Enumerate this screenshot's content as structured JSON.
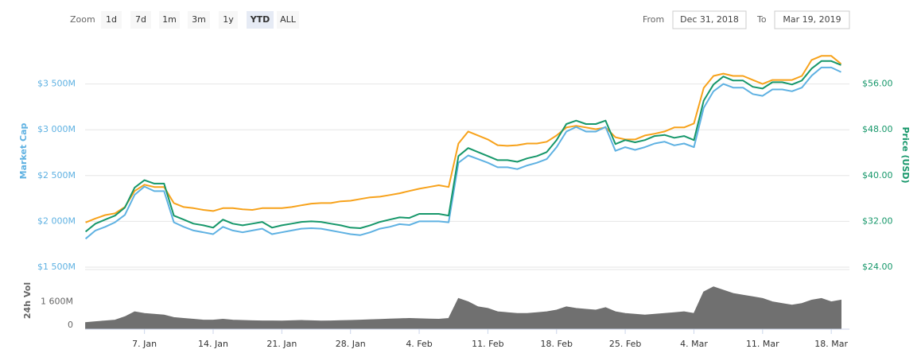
{
  "toolbar": {
    "zoom_label": "Zoom",
    "buttons": [
      "1d",
      "7d",
      "1m",
      "3m",
      "1y",
      "YTD",
      "ALL"
    ],
    "active": 5,
    "from_label": "From",
    "from": "Dec 31, 2018",
    "to_label": "To",
    "to": "Mar 19, 2019"
  },
  "chart_data": [
    {
      "type": "line",
      "y_label": "Market Cap",
      "y2_label": "Price (USD)",
      "grid": true,
      "x": [
        "1. Jan",
        "2. Jan",
        "3. Jan",
        "4. Jan",
        "5. Jan",
        "6. Jan",
        "7. Jan",
        "8. Jan",
        "9. Jan",
        "10. Jan",
        "11. Jan",
        "12. Jan",
        "13. Jan",
        "14. Jan",
        "15. Jan",
        "16. Jan",
        "17. Jan",
        "18. Jan",
        "19. Jan",
        "20. Jan",
        "21. Jan",
        "22. Jan",
        "23. Jan",
        "24. Jan",
        "25. Jan",
        "26. Jan",
        "27. Jan",
        "28. Jan",
        "29. Jan",
        "30. Jan",
        "31. Jan",
        "1. Feb",
        "2. Feb",
        "3. Feb",
        "4. Feb",
        "5. Feb",
        "6. Feb",
        "7. Feb",
        "8. Feb",
        "9. Feb",
        "10. Feb",
        "11. Feb",
        "12. Feb",
        "13. Feb",
        "14. Feb",
        "15. Feb",
        "16. Feb",
        "17. Feb",
        "18. Feb",
        "19. Feb",
        "20. Feb",
        "21. Feb",
        "22. Feb",
        "23. Feb",
        "24. Feb",
        "25. Feb",
        "26. Feb",
        "27. Feb",
        "28. Feb",
        "1. Mar",
        "2. Mar",
        "3. Mar",
        "4. Mar",
        "5. Mar",
        "6. Mar",
        "7. Mar",
        "8. Mar",
        "9. Mar",
        "10. Mar",
        "11. Mar",
        "12. Mar",
        "13. Mar",
        "14. Mar",
        "15. Mar",
        "16. Mar",
        "17. Mar",
        "18. Mar",
        "19. Mar"
      ],
      "ylim": [
        1500,
        4000
      ],
      "yticks": [
        {
          "value": 1500,
          "label": "$1 500M"
        },
        {
          "value": 2000,
          "label": "$2 000M"
        },
        {
          "value": 2500,
          "label": "$2 500M"
        },
        {
          "value": 3000,
          "label": "$3 000M"
        },
        {
          "value": 3500,
          "label": "$3 500M"
        }
      ],
      "y2lim": [
        24,
        64
      ],
      "y2ticks": [
        {
          "value": 24,
          "label": "$24.00"
        },
        {
          "value": 32,
          "label": "$32.00"
        },
        {
          "value": 40,
          "label": "$40.00"
        },
        {
          "value": 48,
          "label": "$48.00"
        },
        {
          "value": 56,
          "label": "$56.00"
        }
      ],
      "series": [
        {
          "color": "#f7a21b",
          "axis": "y2",
          "values": [
            31.8,
            32.5,
            33.1,
            33.4,
            34.5,
            37.3,
            38.4,
            38.0,
            38.0,
            35.2,
            34.5,
            34.3,
            34.0,
            33.8,
            34.3,
            34.3,
            34.1,
            34.0,
            34.3,
            34.3,
            34.3,
            34.5,
            34.8,
            35.1,
            35.2,
            35.2,
            35.5,
            35.6,
            35.9,
            36.2,
            36.3,
            36.6,
            36.9,
            37.3,
            37.7,
            38.0,
            38.3,
            38.0,
            45.6,
            47.7,
            47.0,
            46.3,
            45.3,
            45.2,
            45.3,
            45.6,
            45.6,
            45.9,
            47.0,
            48.4,
            48.7,
            48.4,
            48.1,
            48.4,
            46.7,
            46.3,
            46.3,
            47.0,
            47.3,
            47.7,
            48.4,
            48.4,
            49.1,
            55.3,
            57.4,
            57.8,
            57.4,
            57.4,
            56.7,
            56.0,
            56.7,
            56.7,
            56.7,
            57.4,
            60.2,
            60.9,
            60.9,
            59.5
          ]
        },
        {
          "color": "#5eb1e2",
          "axis": "y",
          "values": [
            1810,
            1900,
            1940,
            1990,
            2070,
            2290,
            2380,
            2330,
            2330,
            1990,
            1940,
            1900,
            1880,
            1860,
            1940,
            1900,
            1880,
            1900,
            1920,
            1860,
            1880,
            1900,
            1920,
            1925,
            1920,
            1900,
            1880,
            1860,
            1850,
            1880,
            1920,
            1940,
            1970,
            1960,
            2000,
            2000,
            2000,
            1990,
            2640,
            2720,
            2680,
            2640,
            2590,
            2590,
            2570,
            2610,
            2640,
            2680,
            2810,
            2980,
            3030,
            2980,
            2980,
            3030,
            2770,
            2810,
            2780,
            2810,
            2850,
            2870,
            2830,
            2850,
            2810,
            3240,
            3420,
            3500,
            3460,
            3460,
            3390,
            3370,
            3440,
            3440,
            3420,
            3460,
            3590,
            3680,
            3680,
            3630
          ]
        },
        {
          "color": "#16976a",
          "axis": "y2",
          "values": [
            30.2,
            31.6,
            32.3,
            33.0,
            34.4,
            37.9,
            39.2,
            38.6,
            38.6,
            33.0,
            32.3,
            31.6,
            31.3,
            30.9,
            32.3,
            31.6,
            31.3,
            31.6,
            31.9,
            30.9,
            31.3,
            31.6,
            31.9,
            32.0,
            31.9,
            31.6,
            31.3,
            30.9,
            30.8,
            31.3,
            31.9,
            32.3,
            32.7,
            32.6,
            33.3,
            33.3,
            33.3,
            33.0,
            43.4,
            44.8,
            44.1,
            43.4,
            42.7,
            42.7,
            42.4,
            43.0,
            43.4,
            44.1,
            46.2,
            49.0,
            49.6,
            49.0,
            49.0,
            49.6,
            45.5,
            46.2,
            45.8,
            46.2,
            46.9,
            47.1,
            46.6,
            46.9,
            46.2,
            53.1,
            55.9,
            57.3,
            56.6,
            56.6,
            55.5,
            55.2,
            56.3,
            56.3,
            55.9,
            56.6,
            58.7,
            60.0,
            60.0,
            59.3
          ]
        }
      ]
    },
    {
      "type": "area",
      "y_label": "24h Vol",
      "color": "#707070",
      "ylim": [
        0,
        3400
      ],
      "yticks": [
        0,
        {
          "value": 1600,
          "label": "1 600M"
        }
      ],
      "xticks": [
        "7. Jan",
        "14. Jan",
        "21. Jan",
        "28. Jan",
        "4. Feb",
        "11. Feb",
        "18. Feb",
        "25. Feb",
        "4. Mar",
        "11. Mar",
        "18. Mar"
      ],
      "values": [
        350,
        400,
        450,
        500,
        700,
        1000,
        900,
        850,
        800,
        650,
        600,
        550,
        500,
        500,
        550,
        500,
        480,
        460,
        450,
        450,
        440,
        460,
        480,
        460,
        440,
        450,
        470,
        480,
        500,
        520,
        540,
        560,
        580,
        600,
        580,
        560,
        550,
        600,
        1800,
        1600,
        1300,
        1200,
        1000,
        950,
        900,
        900,
        950,
        1000,
        1100,
        1300,
        1200,
        1150,
        1100,
        1250,
        1000,
        900,
        850,
        800,
        850,
        900,
        950,
        1000,
        900,
        2200,
        2500,
        2300,
        2100,
        2000,
        1900,
        1800,
        1600,
        1500,
        1400,
        1500,
        1700,
        1800,
        1600,
        1700
      ]
    }
  ]
}
